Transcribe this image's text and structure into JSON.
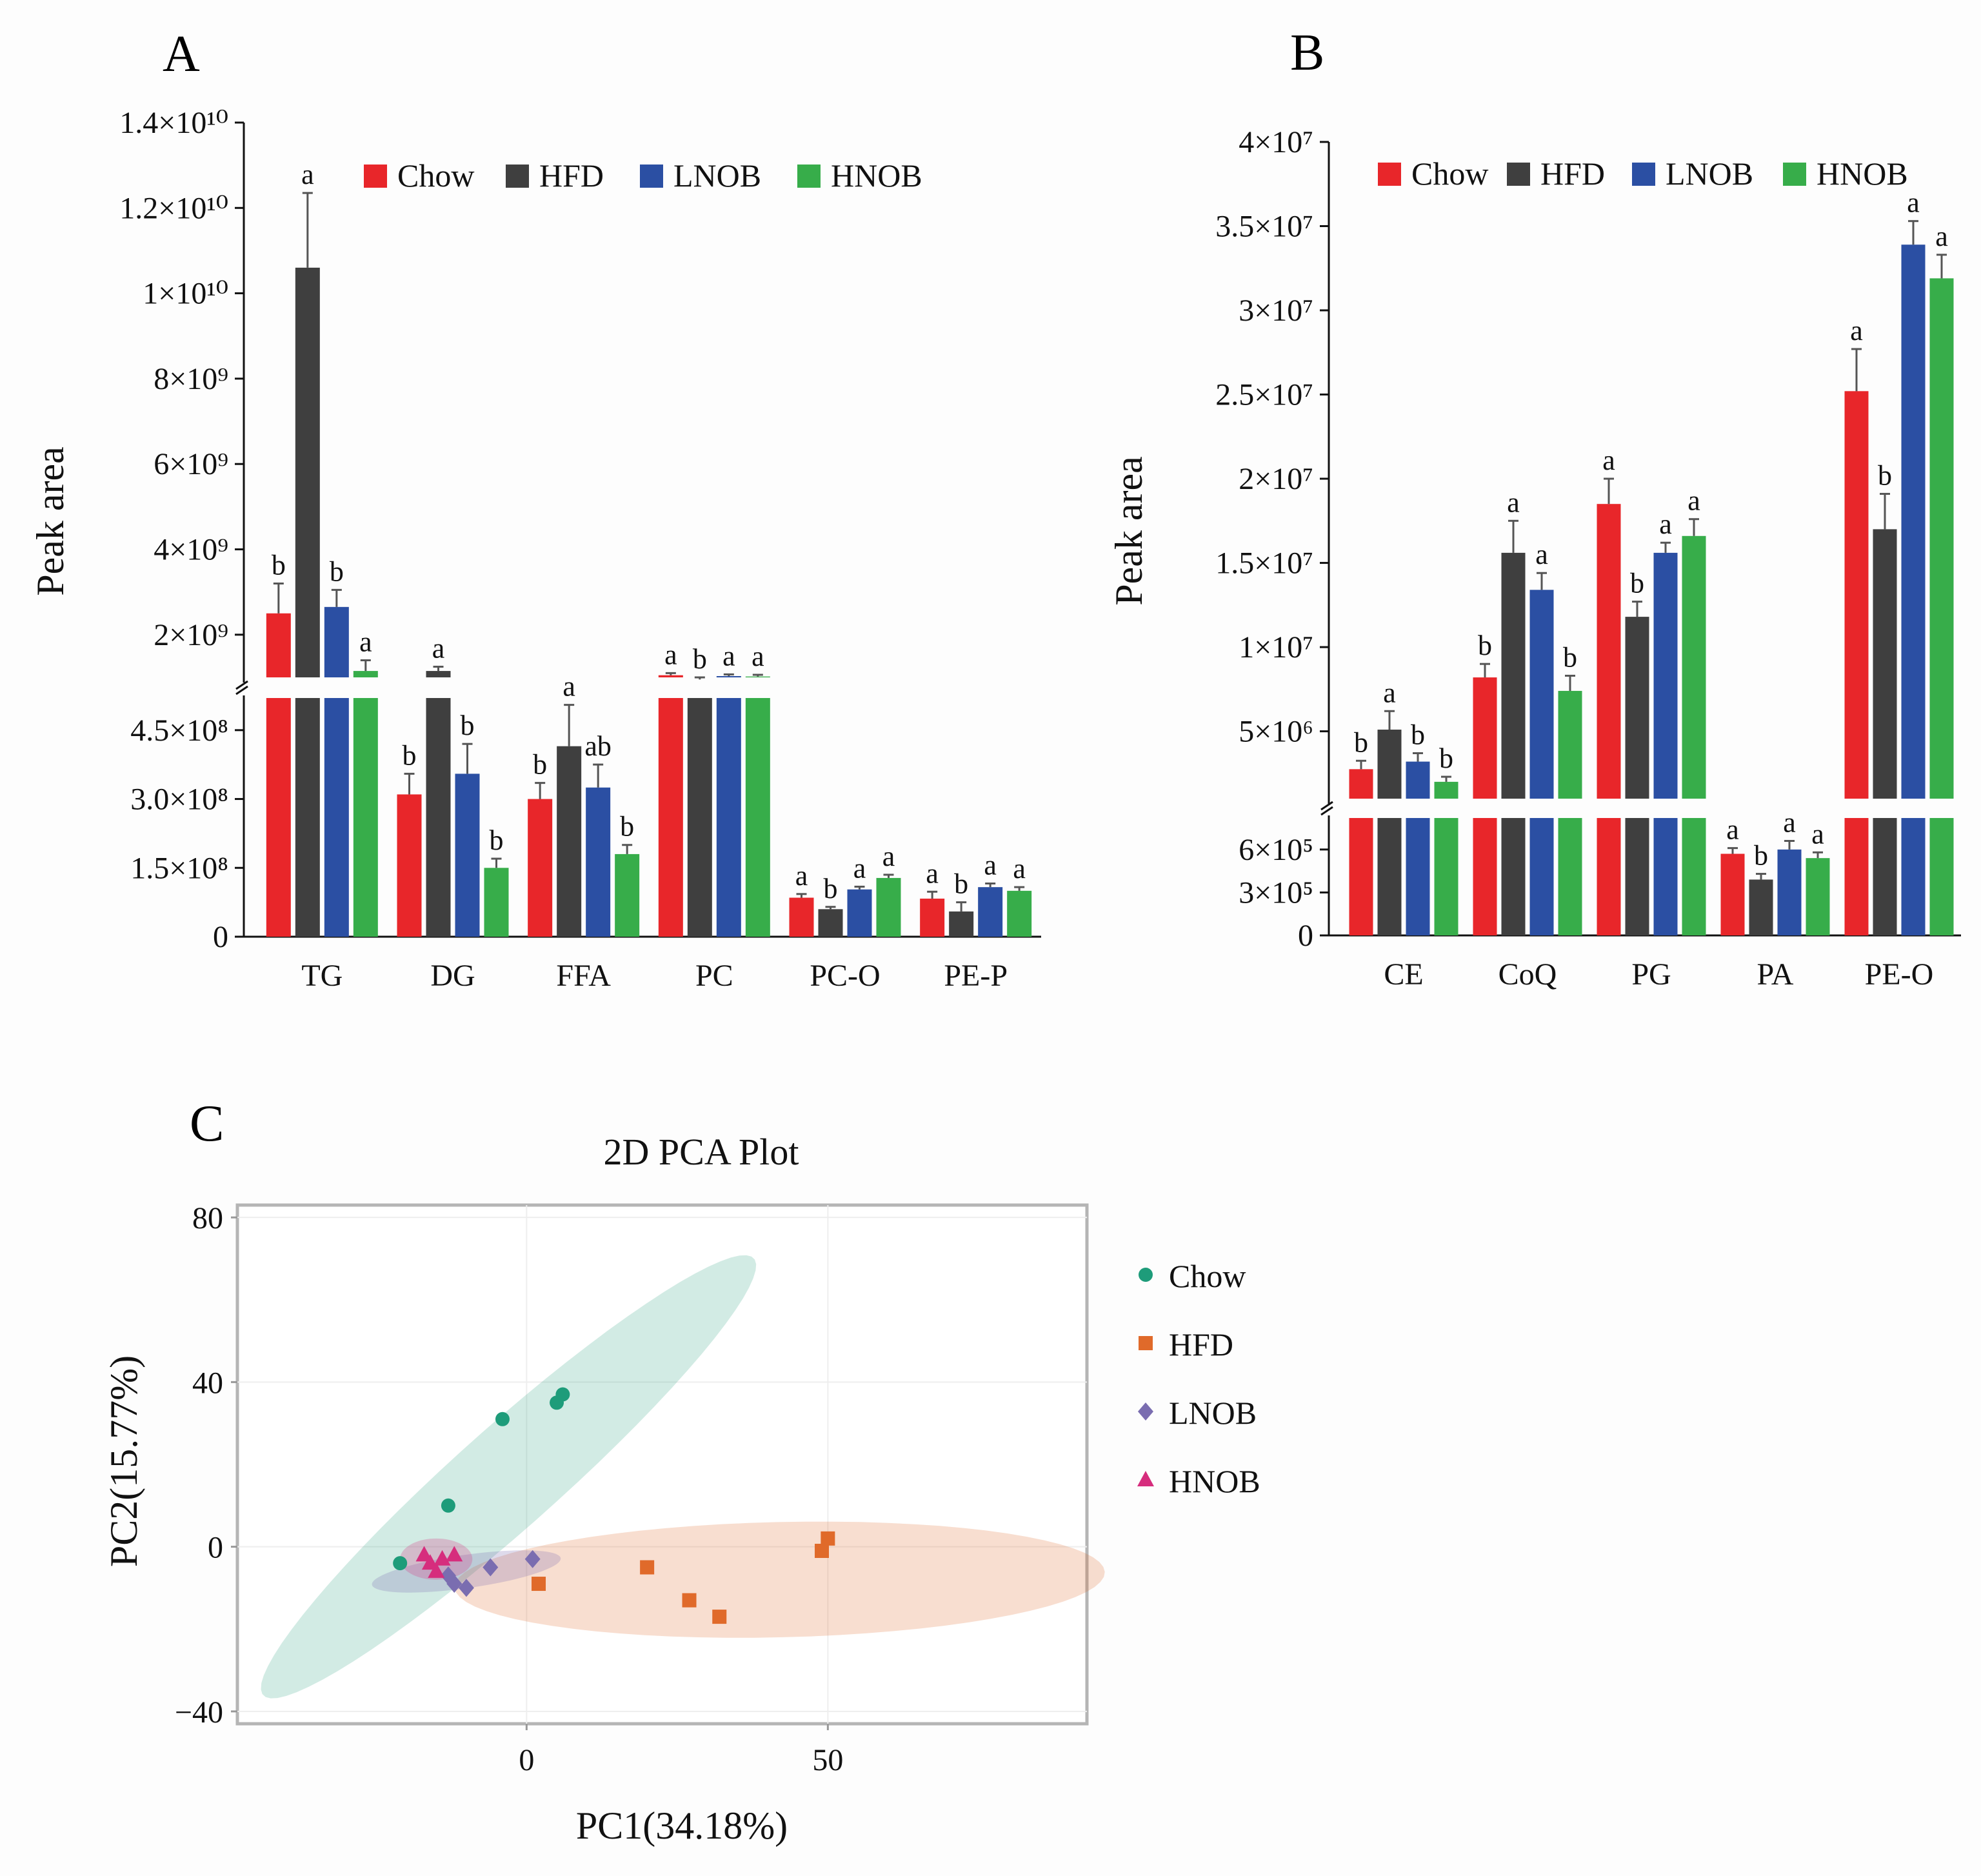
{
  "panels": {
    "a": "A",
    "b": "B",
    "c": "C"
  },
  "colors": {
    "Chow": "#e8262a",
    "HFD": "#3f3f3f",
    "LNOB": "#2b4fa3",
    "HNOB": "#37ad4a",
    "pcaChow": "#1e9c7a",
    "pcaHFD": "#e06a2a",
    "pcaLNOB": "#7a6db0",
    "pcaHNOB": "#d62d7d"
  },
  "chart_data": [
    {
      "id": "A",
      "type": "bar",
      "ylabel": "Peak area",
      "categories": [
        "TG",
        "DG",
        "FFA",
        "PC",
        "PC-O",
        "PE-P"
      ],
      "legend": [
        "Chow",
        "HFD",
        "LNOB",
        "HNOB"
      ],
      "axis_break": {
        "lower_max": 520000000.0,
        "upper_min": 1000000000.0
      },
      "lower_ticks": [
        {
          "v": 0,
          "t": "0"
        },
        {
          "v": 150000000.0,
          "t": "1.5×10⁸"
        },
        {
          "v": 300000000.0,
          "t": "3.0×10⁸"
        },
        {
          "v": 450000000.0,
          "t": "4.5×10⁸"
        }
      ],
      "upper_ticks": [
        {
          "v": 2000000000.0,
          "t": "2×10⁹"
        },
        {
          "v": 4000000000.0,
          "t": "4×10⁹"
        },
        {
          "v": 6000000000.0,
          "t": "6×10⁹"
        },
        {
          "v": 8000000000.0,
          "t": "8×10⁹"
        },
        {
          "v": 10000000000.0,
          "t": "1×10¹⁰"
        },
        {
          "v": 12000000000.0,
          "t": "1.2×10¹⁰"
        },
        {
          "v": 14000000000.0,
          "t": "1.4×10¹⁰"
        }
      ],
      "series": [
        {
          "name": "Chow",
          "values": [
            2500000000.0,
            310000000.0,
            300000000.0,
            1050000000.0,
            85000000.0,
            83000000.0
          ],
          "errors": [
            700000000.0,
            45000000.0,
            35000000.0,
            50000000.0,
            8000000.0,
            15000000.0
          ],
          "labels": [
            "b",
            "b",
            "b",
            "a",
            "a",
            "a"
          ]
        },
        {
          "name": "HFD",
          "values": [
            10600000000.0,
            1150000000.0,
            415000000.0,
            950000000.0,
            60000000.0,
            55000000.0
          ],
          "errors": [
            1750000000.0,
            100000000.0,
            90000000.0,
            50000000.0,
            5000000.0,
            20000000.0
          ],
          "labels": [
            "a",
            "a",
            "a",
            "b",
            "b",
            "b"
          ]
        },
        {
          "name": "LNOB",
          "values": [
            2650000000.0,
            355000000.0,
            325000000.0,
            1030000000.0,
            103000000.0,
            108000000.0
          ],
          "errors": [
            400000000.0,
            65000000.0,
            50000000.0,
            40000000.0,
            6000000.0,
            8000000.0
          ],
          "labels": [
            "b",
            "b",
            "ab",
            "a",
            "a",
            "a"
          ]
        },
        {
          "name": "HNOB",
          "values": [
            1150000000.0,
            150000000.0,
            180000000.0,
            1020000000.0,
            128000000.0,
            100000000.0
          ],
          "errors": [
            250000000.0,
            20000000.0,
            20000000.0,
            40000000.0,
            7000000.0,
            8000000.0
          ],
          "labels": [
            "a",
            "b",
            "b",
            "a",
            "a",
            "a"
          ]
        }
      ]
    },
    {
      "id": "B",
      "type": "bar",
      "ylabel": "Peak area",
      "categories": [
        "CE",
        "CoQ",
        "PG",
        "PA",
        "PE-O"
      ],
      "legend": [
        "Chow",
        "HFD",
        "LNOB",
        "HNOB"
      ],
      "axis_break": {
        "lower_max": 820000.0,
        "upper_min": 1000000.0
      },
      "lower_ticks": [
        {
          "v": 0,
          "t": "0"
        },
        {
          "v": 300000.0,
          "t": "3×10⁵"
        },
        {
          "v": 600000.0,
          "t": "6×10⁵"
        }
      ],
      "upper_ticks": [
        {
          "v": 5000000.0,
          "t": "5×10⁶"
        },
        {
          "v": 10000000.0,
          "t": "1×10⁷"
        },
        {
          "v": 15000000.0,
          "t": "1.5×10⁷"
        },
        {
          "v": 20000000.0,
          "t": "2×10⁷"
        },
        {
          "v": 25000000.0,
          "t": "2.5×10⁷"
        },
        {
          "v": 30000000.0,
          "t": "3×10⁷"
        },
        {
          "v": 35000000.0,
          "t": "3.5×10⁷"
        },
        {
          "v": 40000000.0,
          "t": "4×10⁷"
        }
      ],
      "series": [
        {
          "name": "Chow",
          "values": [
            2750000.0,
            8200000.0,
            18500000.0,
            570000.0,
            25200000.0
          ],
          "errors": [
            500000.0,
            800000.0,
            1500000.0,
            40000.0,
            2500000.0
          ],
          "labels": [
            "b",
            "b",
            "a",
            "a",
            "a"
          ]
        },
        {
          "name": "HFD",
          "values": [
            5100000.0,
            15600000.0,
            11800000.0,
            390000.0,
            17000000.0
          ],
          "errors": [
            1100000.0,
            1900000.0,
            900000.0,
            40000.0,
            2100000.0
          ],
          "labels": [
            "a",
            "a",
            "b",
            "b",
            "b"
          ]
        },
        {
          "name": "LNOB",
          "values": [
            3200000.0,
            13400000.0,
            15600000.0,
            600000.0,
            33900000.0
          ],
          "errors": [
            500000.0,
            1000000.0,
            600000.0,
            60000.0,
            1400000.0
          ],
          "labels": [
            "b",
            "a",
            "a",
            "a",
            "a"
          ]
        },
        {
          "name": "HNOB",
          "values": [
            2000000.0,
            7400000.0,
            16600000.0,
            540000.0,
            31900000.0
          ],
          "errors": [
            300000.0,
            900000.0,
            1000000.0,
            40000.0,
            1400000.0
          ],
          "labels": [
            "b",
            "b",
            "a",
            "a",
            "a"
          ]
        }
      ]
    },
    {
      "id": "C",
      "type": "scatter",
      "title": "2D PCA Plot",
      "xlabel": "PC1(34.18%)",
      "ylabel": "PC2(15.77%)",
      "xlim": [
        -48,
        93
      ],
      "ylim": [
        -43,
        83
      ],
      "xticks": [
        0,
        50
      ],
      "yticks": [
        -40,
        0,
        40,
        80
      ],
      "yticklabels": [
        "−40",
        "0",
        "40",
        "80"
      ],
      "series": [
        {
          "name": "Chow",
          "marker": "circle",
          "points": [
            [
              -21,
              -4
            ],
            [
              -13,
              10
            ],
            [
              -4,
              31
            ],
            [
              5,
              35
            ],
            [
              6,
              37
            ]
          ]
        },
        {
          "name": "HFD",
          "marker": "square",
          "points": [
            [
              2,
              -9
            ],
            [
              20,
              -5
            ],
            [
              27,
              -13
            ],
            [
              32,
              -17
            ],
            [
              49,
              -1
            ],
            [
              50,
              2
            ]
          ]
        },
        {
          "name": "LNOB",
          "marker": "diamond",
          "points": [
            [
              -13,
              -7
            ],
            [
              -12,
              -9
            ],
            [
              -10,
              -10
            ],
            [
              -6,
              -5
            ],
            [
              1,
              -3
            ]
          ]
        },
        {
          "name": "HNOB",
          "marker": "triangle",
          "points": [
            [
              -17,
              -2
            ],
            [
              -16,
              -4
            ],
            [
              -15,
              -6
            ],
            [
              -14,
              -3
            ],
            [
              -12,
              -2
            ]
          ]
        }
      ],
      "ellipses": [
        {
          "name": "Chow",
          "cx": -3,
          "cy": 17,
          "rx": 67,
          "ry": 10,
          "angle_deg": 53
        },
        {
          "name": "HFD",
          "cx": 42,
          "cy": -8,
          "rx": 54,
          "ry": 14,
          "angle_deg": 2
        },
        {
          "name": "LNOB",
          "cx": -10,
          "cy": -6,
          "rx": 16,
          "ry": 4,
          "angle_deg": 12
        },
        {
          "name": "HNOB",
          "cx": -15,
          "cy": -3,
          "rx": 6,
          "ry": 5,
          "angle_deg": 0
        }
      ]
    }
  ]
}
